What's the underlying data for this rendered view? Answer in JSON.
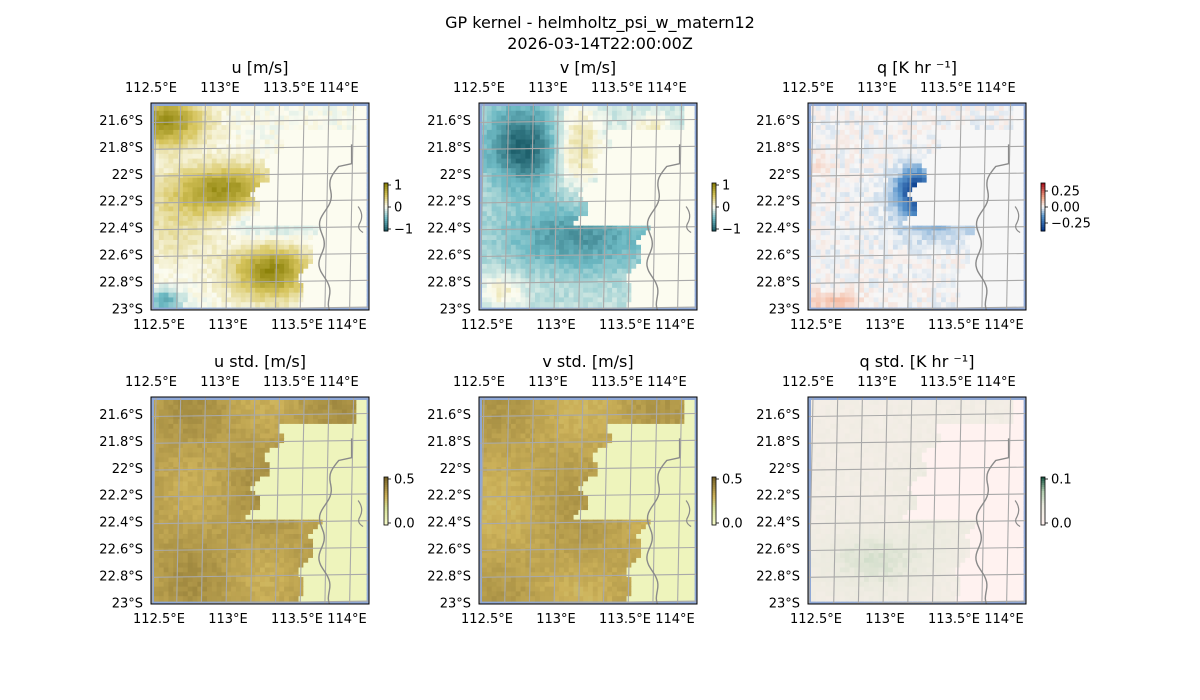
{
  "figure": {
    "suptitle_line1": "GP kernel - helmholtz_psi_w_matern12",
    "suptitle_line2": "2026-03-14T22:00:00Z"
  },
  "colors": {
    "frame": "#000000",
    "grid": "#a9a9a9",
    "ocean_edge": "#8fa8d6",
    "coastline": "#8a8a8a"
  },
  "chart_data": [
    {
      "type": "heatmap",
      "panel": "u",
      "title": "u [m/s]",
      "x_ticks": [
        "112.5°E",
        "113°E",
        "113.5°E",
        "114°E"
      ],
      "y_ticks": [
        "21.6°S",
        "21.8°S",
        "22°S",
        "22.2°S",
        "22.4°S",
        "22.6°S",
        "22.8°S",
        "23°S"
      ],
      "extent": {
        "lon": [
          112.4,
          114.2
        ],
        "lat": [
          -23.0,
          -21.45
        ]
      },
      "colorbar": {
        "ticks": [
          "1",
          "0",
          "−1"
        ],
        "range": [
          -1,
          1
        ],
        "colormap": "teal-white-olive"
      },
      "land_value": 0.0
    },
    {
      "type": "heatmap",
      "panel": "v",
      "title": "v [m/s]",
      "x_ticks": [
        "112.5°E",
        "113°E",
        "113.5°E",
        "114°E"
      ],
      "y_ticks": [
        "21.6°S",
        "21.8°S",
        "22°S",
        "22.2°S",
        "22.4°S",
        "22.6°S",
        "22.8°S",
        "23°S"
      ],
      "extent": {
        "lon": [
          112.4,
          114.2
        ],
        "lat": [
          -23.0,
          -21.45
        ]
      },
      "colorbar": {
        "ticks": [
          "1",
          "0",
          "−1"
        ],
        "range": [
          -1,
          1
        ],
        "colormap": "teal-white-olive"
      },
      "land_value": 0.0
    },
    {
      "type": "heatmap",
      "panel": "q",
      "title": "q [K hr ⁻¹]",
      "x_ticks": [
        "112.5°E",
        "113°E",
        "113.5°E",
        "114°E"
      ],
      "y_ticks": [
        "21.6°S",
        "21.8°S",
        "22°S",
        "22.2°S",
        "22.4°S",
        "22.6°S",
        "22.8°S",
        "23°S"
      ],
      "extent": {
        "lon": [
          112.4,
          114.2
        ],
        "lat": [
          -23.0,
          -21.45
        ]
      },
      "colorbar": {
        "ticks": [
          "0.25",
          "0.00",
          "−0.25"
        ],
        "range": [
          -0.4,
          0.4
        ],
        "colormap": "blue-white-red"
      },
      "land_value": 0.0
    },
    {
      "type": "heatmap",
      "panel": "u_std",
      "title": "u std. [m/s]",
      "x_ticks": [
        "112.5°E",
        "113°E",
        "113.5°E",
        "114°E"
      ],
      "y_ticks": [
        "21.6°S",
        "21.8°S",
        "22°S",
        "22.2°S",
        "22.4°S",
        "22.6°S",
        "22.8°S",
        "23°S"
      ],
      "extent": {
        "lon": [
          112.4,
          114.2
        ],
        "lat": [
          -23.0,
          -21.45
        ]
      },
      "colorbar": {
        "ticks": [
          "0.5",
          "0.0"
        ],
        "range": [
          0,
          0.6
        ],
        "colormap": "olive-brown"
      },
      "land_value": 0.05
    },
    {
      "type": "heatmap",
      "panel": "v_std",
      "title": "v std. [m/s]",
      "x_ticks": [
        "112.5°E",
        "113°E",
        "113.5°E",
        "114°E"
      ],
      "y_ticks": [
        "21.6°S",
        "21.8°S",
        "22°S",
        "22.2°S",
        "22.4°S",
        "22.6°S",
        "22.8°S",
        "23°S"
      ],
      "extent": {
        "lon": [
          112.4,
          114.2
        ],
        "lat": [
          -23.0,
          -21.45
        ]
      },
      "colorbar": {
        "ticks": [
          "0.5",
          "0.0"
        ],
        "range": [
          0,
          0.6
        ],
        "colormap": "olive-brown"
      },
      "land_value": 0.05
    },
    {
      "type": "heatmap",
      "panel": "q_std",
      "title": "q std. [K hr ⁻¹]",
      "x_ticks": [
        "112.5°E",
        "113°E",
        "113.5°E",
        "114°E"
      ],
      "y_ticks": [
        "21.6°S",
        "21.8°S",
        "22°S",
        "22.2°S",
        "22.4°S",
        "22.6°S",
        "22.8°S",
        "23°S"
      ],
      "extent": {
        "lon": [
          112.4,
          114.2
        ],
        "lat": [
          -23.0,
          -21.45
        ]
      },
      "colorbar": {
        "ticks": [
          "0.1",
          "0.0"
        ],
        "range": [
          0,
          0.12
        ],
        "colormap": "pink-green"
      },
      "land_value": 0.0
    }
  ]
}
